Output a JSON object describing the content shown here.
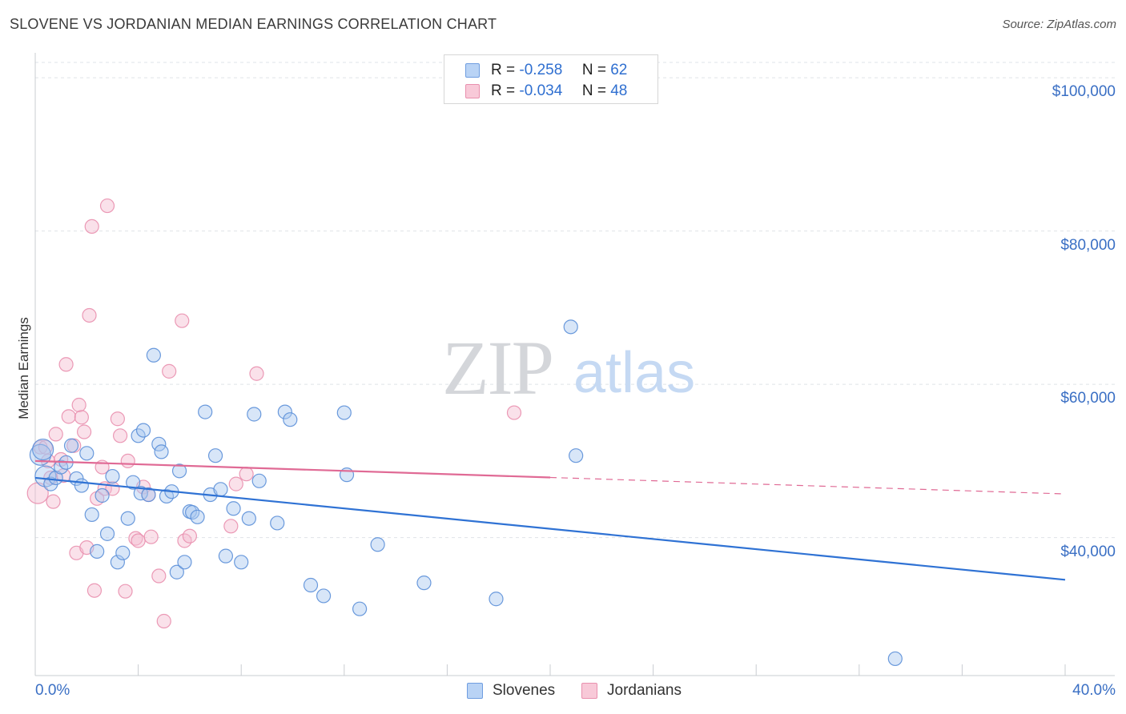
{
  "chart_data": {
    "type": "scatter",
    "title": "SLOVENE VS JORDANIAN MEDIAN EARNINGS CORRELATION CHART",
    "source": "Source: ZipAtlas.com",
    "watermark": {
      "bold": "ZIP",
      "light": "atlas"
    },
    "xlabel": "",
    "ylabel": "Median Earnings",
    "xlim": [
      0,
      40
    ],
    "ylim": [
      22000,
      102000
    ],
    "x_tick_labels": {
      "min": "0.0%",
      "max": "40.0%"
    },
    "y_ticks": [
      {
        "value": 40000,
        "label": "$40,000"
      },
      {
        "value": 60000,
        "label": "$60,000"
      },
      {
        "value": 80000,
        "label": "$80,000"
      },
      {
        "value": 100000,
        "label": "$100,000"
      }
    ],
    "stats": [
      {
        "r_label": "R =",
        "r_value": "-0.258",
        "n_label": "N =",
        "n_value": "62"
      },
      {
        "r_label": "R =",
        "r_value": "-0.034",
        "n_label": "N =",
        "n_value": "48"
      }
    ],
    "series": [
      {
        "name": "Slovenes",
        "color": "#5b8fd8",
        "fill": "#a9c8f0",
        "line_color": "#2f72d4",
        "trend": {
          "x0": 0,
          "y0": 47800,
          "x1": 40,
          "y1": 34500,
          "solid_to": 40
        },
        "points": [
          [
            0.2,
            50800
          ],
          [
            0.3,
            51500
          ],
          [
            0.4,
            48000
          ],
          [
            0.6,
            47000
          ],
          [
            0.8,
            47800
          ],
          [
            1.0,
            49200
          ],
          [
            1.2,
            49800
          ],
          [
            1.4,
            52000
          ],
          [
            1.6,
            47700
          ],
          [
            1.8,
            46800
          ],
          [
            2.0,
            51000
          ],
          [
            2.2,
            43000
          ],
          [
            2.4,
            38200
          ],
          [
            2.6,
            45500
          ],
          [
            2.8,
            40500
          ],
          [
            3.0,
            48000
          ],
          [
            3.2,
            36800
          ],
          [
            3.4,
            38000
          ],
          [
            3.6,
            42500
          ],
          [
            3.8,
            47200
          ],
          [
            4.0,
            53300
          ],
          [
            4.1,
            45800
          ],
          [
            4.2,
            54000
          ],
          [
            4.4,
            45600
          ],
          [
            4.6,
            63800
          ],
          [
            4.8,
            52200
          ],
          [
            4.9,
            51200
          ],
          [
            5.1,
            45400
          ],
          [
            5.3,
            46000
          ],
          [
            5.5,
            35500
          ],
          [
            5.6,
            48700
          ],
          [
            5.8,
            36800
          ],
          [
            6.0,
            43400
          ],
          [
            6.1,
            43300
          ],
          [
            6.3,
            42700
          ],
          [
            6.6,
            56400
          ],
          [
            6.8,
            45600
          ],
          [
            7.0,
            50700
          ],
          [
            7.2,
            46300
          ],
          [
            7.4,
            37600
          ],
          [
            7.7,
            43800
          ],
          [
            8.0,
            36800
          ],
          [
            8.3,
            42500
          ],
          [
            8.5,
            56100
          ],
          [
            8.7,
            47400
          ],
          [
            9.4,
            41900
          ],
          [
            9.7,
            56400
          ],
          [
            9.9,
            55400
          ],
          [
            10.7,
            33800
          ],
          [
            11.2,
            32400
          ],
          [
            12.0,
            56300
          ],
          [
            12.1,
            48200
          ],
          [
            12.6,
            30700
          ],
          [
            13.3,
            39100
          ],
          [
            15.1,
            34100
          ],
          [
            17.9,
            32000
          ],
          [
            20.8,
            67500
          ],
          [
            21.0,
            50700
          ],
          [
            33.4,
            24200
          ]
        ]
      },
      {
        "name": "Jordanians",
        "color": "#e98fae",
        "fill": "#f5bcd0",
        "line_color": "#e06a95",
        "trend": {
          "x0": 0,
          "y0": 50000,
          "x1": 40,
          "y1": 45700,
          "solid_to": 20
        },
        "points": [
          [
            0.1,
            45800
          ],
          [
            0.2,
            51800
          ],
          [
            0.4,
            51800
          ],
          [
            0.5,
            50000
          ],
          [
            0.6,
            47800
          ],
          [
            0.7,
            44700
          ],
          [
            0.8,
            53500
          ],
          [
            1.0,
            50200
          ],
          [
            1.1,
            48100
          ],
          [
            1.2,
            62600
          ],
          [
            1.3,
            55800
          ],
          [
            1.5,
            52000
          ],
          [
            1.6,
            38000
          ],
          [
            1.7,
            57300
          ],
          [
            1.8,
            55700
          ],
          [
            1.9,
            53800
          ],
          [
            2.0,
            38700
          ],
          [
            2.1,
            69000
          ],
          [
            2.2,
            80600
          ],
          [
            2.3,
            33100
          ],
          [
            2.4,
            45100
          ],
          [
            2.6,
            49200
          ],
          [
            2.7,
            46400
          ],
          [
            2.8,
            83300
          ],
          [
            3.0,
            46400
          ],
          [
            3.2,
            55500
          ],
          [
            3.3,
            53300
          ],
          [
            3.5,
            33000
          ],
          [
            3.6,
            50000
          ],
          [
            3.9,
            39900
          ],
          [
            4.0,
            39600
          ],
          [
            4.2,
            46600
          ],
          [
            4.4,
            45600
          ],
          [
            4.5,
            40100
          ],
          [
            4.8,
            35000
          ],
          [
            5.0,
            29100
          ],
          [
            5.2,
            61700
          ],
          [
            5.7,
            68300
          ],
          [
            5.8,
            39600
          ],
          [
            6.0,
            40200
          ],
          [
            7.6,
            41500
          ],
          [
            7.8,
            47000
          ],
          [
            8.2,
            48300
          ],
          [
            8.6,
            61400
          ],
          [
            18.6,
            56300
          ]
        ]
      }
    ]
  }
}
